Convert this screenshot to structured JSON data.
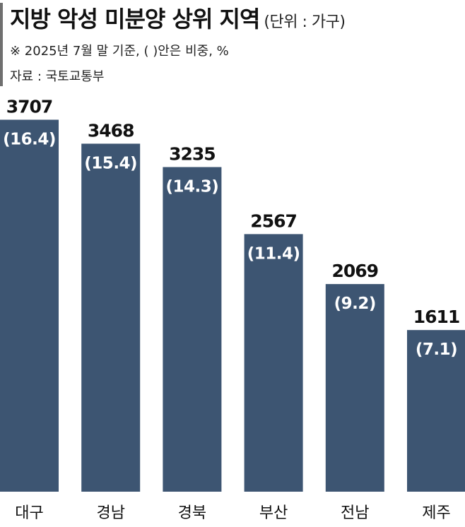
{
  "header": {
    "title": "지방 악성 미분양 상위 지역",
    "unit": "(단위 : 가구)",
    "note": "※ 2025년 7월 말 기준, (  )안은 비중, %",
    "source": "자료 : 국토교통부"
  },
  "chart_data": {
    "type": "bar",
    "categories": [
      "대구",
      "경남",
      "경북",
      "부산",
      "전남",
      "제주"
    ],
    "values": [
      3707,
      3468,
      3235,
      2567,
      2069,
      1611
    ],
    "value_labels": [
      "3707",
      "3468",
      "3235",
      "2567",
      "2069",
      "1611"
    ],
    "share_labels": [
      "(16.4)",
      "(15.4)",
      "(14.3)",
      "(11.4)",
      "(9.2)",
      "(7.1)"
    ],
    "shares_percent": [
      16.4,
      15.4,
      14.3,
      11.4,
      9.2,
      7.1
    ],
    "title": "지방 악성 미분양 상위 지역",
    "ylabel": "",
    "xlabel": "",
    "ylim": [
      0,
      4900
    ],
    "grid": false,
    "legend": "none",
    "bar_color": "#3d5572",
    "share_label_color": "#ffffff"
  }
}
